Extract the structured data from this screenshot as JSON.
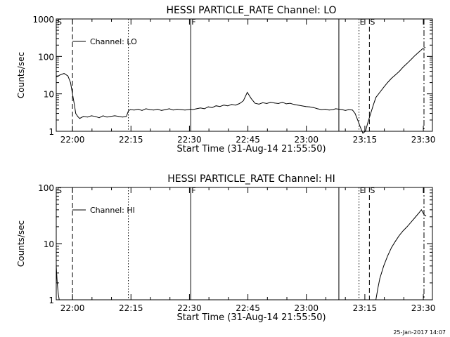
{
  "footer_stamp": "25-Jan-2017 14:07",
  "chart_data": [
    {
      "type": "line",
      "title": "HESSI PARTICLE_RATE Channel: LO",
      "xlabel": "Start Time (31-Aug-14 21:55:50)",
      "ylabel": "Counts/sec",
      "x_ticks": [
        "22:00",
        "22:15",
        "22:30",
        "22:45",
        "23:00",
        "23:15",
        "23:30"
      ],
      "y_ticks": [
        "1",
        "10",
        "100",
        "1000"
      ],
      "ylim": [
        1,
        1000
      ],
      "xlim_seconds_from_start": [
        0,
        5790
      ],
      "y_log": true,
      "legend_label": "Channel: LO",
      "markers": [
        {
          "label": "S",
          "t": 0,
          "style": "none"
        },
        {
          "label": "",
          "t": 250,
          "style": "dashed"
        },
        {
          "label": "",
          "t": 1110,
          "style": "dotted"
        },
        {
          "label": "F",
          "t": 2070,
          "style": "solid"
        },
        {
          "label": "",
          "t": 4350,
          "style": "solid"
        },
        {
          "label": "E",
          "t": 4660,
          "style": "dotted"
        },
        {
          "label": "S",
          "t": 4820,
          "style": "dashed"
        },
        {
          "label": "",
          "t": 5660,
          "style": "dashdot"
        }
      ],
      "series": [
        {
          "name": "Channel: LO",
          "x": [
            0,
            60,
            120,
            180,
            220,
            250,
            280,
            300,
            330,
            360,
            420,
            480,
            540,
            600,
            660,
            720,
            780,
            840,
            900,
            960,
            1020,
            1080,
            1110,
            1140,
            1200,
            1260,
            1320,
            1380,
            1440,
            1500,
            1560,
            1620,
            1680,
            1740,
            1800,
            1860,
            1920,
            1980,
            2040,
            2070,
            2100,
            2160,
            2220,
            2280,
            2340,
            2400,
            2460,
            2520,
            2580,
            2640,
            2700,
            2760,
            2820,
            2880,
            2940,
            3000,
            3060,
            3120,
            3180,
            3240,
            3300,
            3360,
            3420,
            3480,
            3540,
            3600,
            3660,
            3720,
            3780,
            3840,
            3900,
            3960,
            4020,
            4080,
            4140,
            4200,
            4260,
            4300,
            4350,
            4400,
            4450,
            4500,
            4560,
            4600,
            4640,
            4680,
            4720,
            4760,
            4800,
            4840,
            4880,
            4920,
            4980,
            5040,
            5100,
            5160,
            5220,
            5280,
            5340,
            5400,
            5460,
            5520,
            5580,
            5640,
            5680
          ],
          "y": [
            28,
            32,
            35,
            30,
            20,
            10,
            5,
            3,
            2.5,
            2.2,
            2.5,
            2.4,
            2.6,
            2.5,
            2.3,
            2.6,
            2.4,
            2.5,
            2.6,
            2.5,
            2.4,
            2.5,
            3.5,
            3.8,
            3.7,
            3.9,
            3.6,
            4.0,
            3.8,
            3.7,
            3.9,
            3.6,
            3.8,
            4.0,
            3.7,
            3.9,
            3.8,
            3.7,
            3.8,
            3.9,
            3.8,
            4.0,
            4.2,
            4.0,
            4.5,
            4.3,
            4.8,
            4.6,
            5.0,
            4.8,
            5.2,
            5.0,
            5.5,
            6.5,
            11,
            7.5,
            5.6,
            5.3,
            5.8,
            5.5,
            6.0,
            5.7,
            5.5,
            6.0,
            5.4,
            5.6,
            5.2,
            5.0,
            4.8,
            4.6,
            4.5,
            4.3,
            4.0,
            3.8,
            3.9,
            3.7,
            3.8,
            4.0,
            3.9,
            3.8,
            3.6,
            3.8,
            3.7,
            3.0,
            2.0,
            1.3,
            0.8,
            1.0,
            1.8,
            3.0,
            5.0,
            8.0,
            11,
            15,
            20,
            26,
            32,
            40,
            52,
            65,
            82,
            105,
            130,
            160,
            175
          ]
        }
      ]
    },
    {
      "type": "line",
      "title": "HESSI PARTICLE_RATE Channel: HI",
      "xlabel": "Start Time (31-Aug-14 21:55:50)",
      "ylabel": "Counts/sec",
      "x_ticks": [
        "22:00",
        "22:15",
        "22:30",
        "22:45",
        "23:00",
        "23:15",
        "23:30"
      ],
      "y_ticks": [
        "1",
        "10",
        "100"
      ],
      "ylim": [
        1,
        100
      ],
      "xlim_seconds_from_start": [
        0,
        5790
      ],
      "y_log": true,
      "legend_label": "Channel: HI",
      "markers": [
        {
          "label": "S",
          "t": 0,
          "style": "none"
        },
        {
          "label": "",
          "t": 250,
          "style": "dashed"
        },
        {
          "label": "",
          "t": 1110,
          "style": "dotted"
        },
        {
          "label": "F",
          "t": 2070,
          "style": "solid"
        },
        {
          "label": "",
          "t": 4350,
          "style": "solid"
        },
        {
          "label": "E",
          "t": 4660,
          "style": "dotted"
        },
        {
          "label": "S",
          "t": 4820,
          "style": "dashed"
        },
        {
          "label": "",
          "t": 5660,
          "style": "dashdot"
        }
      ],
      "series": [
        {
          "name": "Channel: HI",
          "x": [
            0,
            15,
            30,
            45,
            4920,
            4950,
            4980,
            5040,
            5100,
            5160,
            5220,
            5280,
            5340,
            5400,
            5460,
            5520,
            5580,
            5620,
            5660,
            5690
          ],
          "y": [
            4,
            2,
            1.3,
            1.0,
            1.0,
            1.6,
            2.4,
            4.0,
            6.0,
            8.5,
            11,
            14,
            17,
            20,
            24,
            29,
            35,
            40,
            33,
            31
          ]
        }
      ]
    }
  ]
}
